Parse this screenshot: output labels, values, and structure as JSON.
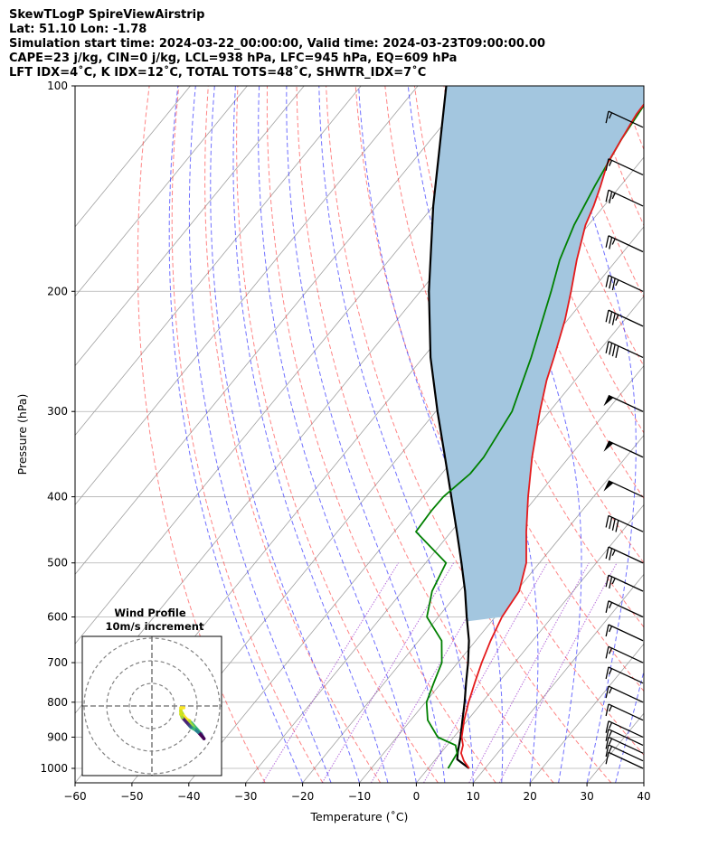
{
  "header": {
    "line1": "SkewTLogP SpireViewAirstrip",
    "line2": "Lat: 51.10   Lon: -1.78",
    "line3": "Simulation start time: 2024-03-22_00:00:00, Valid time: 2024-03-23T09:00:00.00",
    "line4": "CAPE=23 j/kg, CIN=0 j/kg, LCL=938 hPa, LFC=945 hPa, EQ=609 hPa",
    "line5": "LFT IDX=4˚C, K IDX=12˚C, TOTAL TOTS=48˚C, SHWTR_IDX=7˚C"
  },
  "chart_data": {
    "type": "line",
    "xlabel": "Temperature (˚C)",
    "ylabel": "Pressure (hPa)",
    "x_ticks": [
      "−60",
      "−50",
      "−40",
      "−30",
      "−20",
      "−10",
      "0",
      "10",
      "20",
      "30",
      "40"
    ],
    "y_ticks": [
      "100",
      "200",
      "300",
      "400",
      "500",
      "600",
      "700",
      "800",
      "900",
      "1000"
    ],
    "xlim": [
      -60,
      40
    ],
    "ylim": [
      1050,
      100
    ],
    "grid": true,
    "colors": {
      "temperature": "#e41a1c",
      "dewpoint": "#008000",
      "parcel": "#000000",
      "cape_fill": "#a3c6df",
      "dry_adiabat": "#ff3333",
      "moist_adiabat": "#3333ff",
      "mixing_ratio": "#9932cc"
    },
    "series": [
      {
        "key": "temperature",
        "points": [
          [
            1000,
            7.2
          ],
          [
            975,
            5.2
          ],
          [
            950,
            3.6
          ],
          [
            925,
            2.8
          ],
          [
            900,
            1.4
          ],
          [
            850,
            -0.6
          ],
          [
            800,
            -2.4
          ],
          [
            750,
            -4.1
          ],
          [
            700,
            -5.8
          ],
          [
            650,
            -7.4
          ],
          [
            600,
            -8.8
          ],
          [
            550,
            -9.5
          ],
          [
            500,
            -12.3
          ],
          [
            450,
            -16.8
          ],
          [
            400,
            -21.5
          ],
          [
            350,
            -26.5
          ],
          [
            300,
            -31.7
          ],
          [
            270,
            -35
          ],
          [
            250,
            -37
          ],
          [
            220,
            -40.5
          ],
          [
            200,
            -43.5
          ],
          [
            180,
            -47
          ],
          [
            160,
            -50.5
          ],
          [
            150,
            -51.8
          ],
          [
            140,
            -53.5
          ],
          [
            130,
            -55.5
          ],
          [
            120,
            -56.5
          ],
          [
            110,
            -57.5
          ],
          [
            100,
            -57.8
          ]
        ]
      },
      {
        "key": "dewpoint",
        "points": [
          [
            1000,
            3.5
          ],
          [
            950,
            2.9
          ],
          [
            925,
            1.5
          ],
          [
            900,
            -2.8
          ],
          [
            850,
            -7
          ],
          [
            800,
            -9.8
          ],
          [
            750,
            -11.3
          ],
          [
            700,
            -12.8
          ],
          [
            650,
            -16
          ],
          [
            600,
            -22
          ],
          [
            550,
            -24.8
          ],
          [
            500,
            -26.4
          ],
          [
            450,
            -36.2
          ],
          [
            420,
            -36.5
          ],
          [
            400,
            -36.4
          ],
          [
            370,
            -35
          ],
          [
            350,
            -35
          ],
          [
            300,
            -36.6
          ],
          [
            250,
            -41
          ],
          [
            200,
            -47
          ],
          [
            180,
            -50
          ],
          [
            160,
            -52.5
          ],
          [
            140,
            -54.5
          ],
          [
            120,
            -56.5
          ],
          [
            100,
            -58
          ]
        ]
      },
      {
        "key": "parcel",
        "points": [
          [
            1000,
            7.2
          ],
          [
            970,
            3.8
          ],
          [
            945,
            2.8
          ],
          [
            900,
            1.2
          ],
          [
            850,
            -0.9
          ],
          [
            800,
            -3.1
          ],
          [
            750,
            -5.6
          ],
          [
            700,
            -8.2
          ],
          [
            650,
            -11.2
          ],
          [
            609,
            -14.3
          ],
          [
            600,
            -15
          ],
          [
            550,
            -19
          ],
          [
            500,
            -23.7
          ],
          [
            450,
            -29
          ],
          [
            400,
            -35
          ],
          [
            350,
            -41.8
          ],
          [
            300,
            -49.7
          ],
          [
            250,
            -58.7
          ],
          [
            200,
            -68.5
          ],
          [
            150,
            -80
          ],
          [
            100,
            -95
          ]
        ]
      }
    ],
    "wind_barbs": [
      {
        "p": 1000,
        "speed_kt": 10,
        "dir_deg": 245
      },
      {
        "p": 975,
        "speed_kt": 15,
        "dir_deg": 245
      },
      {
        "p": 950,
        "speed_kt": 15,
        "dir_deg": 245
      },
      {
        "p": 925,
        "speed_kt": 15,
        "dir_deg": 245
      },
      {
        "p": 900,
        "speed_kt": 15,
        "dir_deg": 245
      },
      {
        "p": 850,
        "speed_kt": 15,
        "dir_deg": 245
      },
      {
        "p": 800,
        "speed_kt": 15,
        "dir_deg": 245
      },
      {
        "p": 750,
        "speed_kt": 15,
        "dir_deg": 245
      },
      {
        "p": 700,
        "speed_kt": 15,
        "dir_deg": 245
      },
      {
        "p": 650,
        "speed_kt": 15,
        "dir_deg": 245
      },
      {
        "p": 600,
        "speed_kt": 15,
        "dir_deg": 245
      },
      {
        "p": 550,
        "speed_kt": 25,
        "dir_deg": 245
      },
      {
        "p": 500,
        "speed_kt": 25,
        "dir_deg": 245
      },
      {
        "p": 450,
        "speed_kt": 40,
        "dir_deg": 245
      },
      {
        "p": 400,
        "speed_kt": 50,
        "dir_deg": 245
      },
      {
        "p": 350,
        "speed_kt": 50,
        "dir_deg": 245
      },
      {
        "p": 300,
        "speed_kt": 50,
        "dir_deg": 245
      },
      {
        "p": 250,
        "speed_kt": 40,
        "dir_deg": 245
      },
      {
        "p": 225,
        "speed_kt": 35,
        "dir_deg": 245
      },
      {
        "p": 200,
        "speed_kt": 35,
        "dir_deg": 245
      },
      {
        "p": 175,
        "speed_kt": 25,
        "dir_deg": 245
      },
      {
        "p": 150,
        "speed_kt": 25,
        "dir_deg": 245
      },
      {
        "p": 135,
        "speed_kt": 15,
        "dir_deg": 245
      },
      {
        "p": 115,
        "speed_kt": 15,
        "dir_deg": 245
      }
    ],
    "hodograph": {
      "title_line1": "Wind Profile",
      "title_line2": "10m/s increment",
      "rings_ms": [
        10,
        20,
        30
      ],
      "points_ms": [
        [
          6.5,
          -4.5
        ],
        [
          8.5,
          -6.5
        ],
        [
          10,
          -8
        ],
        [
          11,
          -9.5
        ],
        [
          9,
          -7.5
        ],
        [
          7,
          -6
        ],
        [
          4.5,
          -3.5
        ],
        [
          3,
          -1
        ],
        [
          4,
          -2.5
        ],
        [
          5,
          -3.5
        ],
        [
          6,
          -4
        ],
        [
          6,
          -4.5
        ],
        [
          6.5,
          -5
        ],
        [
          7,
          -5.5
        ],
        [
          7.5,
          -6
        ],
        [
          7.5,
          -6.5
        ],
        [
          6.5,
          -6
        ],
        [
          6,
          -5.5
        ],
        [
          5.5,
          -5
        ],
        [
          5,
          -4.5
        ],
        [
          3.5,
          -3
        ],
        [
          3,
          -2
        ],
        [
          3,
          0
        ],
        [
          4,
          0
        ]
      ],
      "colors": [
        "#35b779",
        "#35b779",
        "#3e4989",
        "#440154",
        "#26828e",
        "#1f9e89",
        "#6ece58",
        "#b5de2b",
        "#fde725",
        "#fde725",
        "#c8e020",
        "#b5de2b",
        "#a5db36",
        "#90d743",
        "#6ece58",
        "#35b779",
        "#2a788e",
        "#3b528b",
        "#46327e",
        "#482475",
        "#a5db36",
        "#d2e21b",
        "#fde725",
        "#fde725"
      ]
    }
  }
}
